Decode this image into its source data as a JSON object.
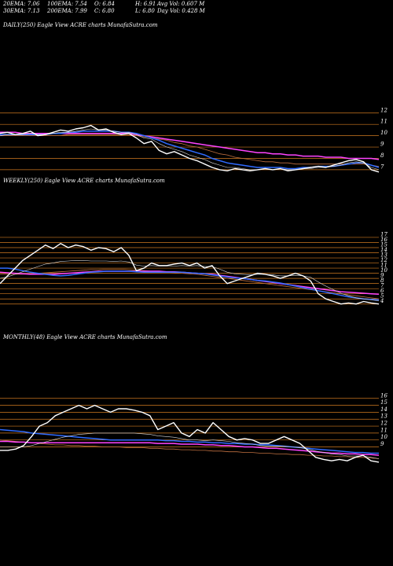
{
  "header": {
    "ema20": "20EMA: 7.06",
    "ema100": "100EMA: 7.54",
    "open": "O: 6.84",
    "high": "H: 6.91",
    "avgvol": "Avg Vol: 0.607 M",
    "ema30": "30EMA: 7.13",
    "ema200": "200EMA: 7.99",
    "close": "C: 6.80",
    "low": "L: 6.80",
    "dayvol": "Day Vol: 0.428  M"
  },
  "colors": {
    "price": "#ffffff",
    "ema_blue": "#2f6bff",
    "ema_magenta": "#ff44ff",
    "ema_brown": "#c07040",
    "ema_white": "#dddddd",
    "grid": "#d07a20"
  },
  "chart_data": [
    {
      "type": "line",
      "title": "DAILY(250) Eagle  View  ACRE charts MunafaSutra.com",
      "ylim": [
        6.3,
        12.4
      ],
      "yticks": [
        "12",
        "11",
        "10",
        "9",
        "8",
        "7"
      ],
      "x": [
        0,
        5,
        10,
        15,
        20,
        25,
        30,
        35,
        40,
        45,
        50,
        55,
        60,
        65,
        70,
        75,
        80,
        85,
        90,
        95,
        100,
        105,
        110,
        115,
        120,
        125,
        130,
        135,
        140,
        145,
        150,
        155,
        160,
        165,
        170,
        175,
        180,
        185,
        190,
        195,
        200,
        205,
        210,
        215,
        220,
        225,
        230,
        235,
        240,
        245,
        250
      ],
      "series": [
        {
          "role": "price",
          "values": [
            10.2,
            10.3,
            10.1,
            10.2,
            10.4,
            10.0,
            10.1,
            10.3,
            10.5,
            10.4,
            10.6,
            10.7,
            10.9,
            10.5,
            10.6,
            10.3,
            10.1,
            10.2,
            9.8,
            9.3,
            9.5,
            8.7,
            8.4,
            8.6,
            8.3,
            8.0,
            7.8,
            7.5,
            7.2,
            7.0,
            6.9,
            7.1,
            7.0,
            6.9,
            7.0,
            7.1,
            7.0,
            7.1,
            6.9,
            7.0,
            7.1,
            7.2,
            7.3,
            7.2,
            7.4,
            7.6,
            7.8,
            7.9,
            7.7,
            7.0,
            6.8
          ]
        },
        {
          "role": "ema_blue",
          "values": [
            10.1,
            10.1,
            10.1,
            10.1,
            10.1,
            10.1,
            10.1,
            10.2,
            10.2,
            10.3,
            10.3,
            10.4,
            10.4,
            10.4,
            10.4,
            10.4,
            10.3,
            10.3,
            10.2,
            10.0,
            9.8,
            9.6,
            9.3,
            9.1,
            8.9,
            8.7,
            8.5,
            8.3,
            8.0,
            7.8,
            7.6,
            7.5,
            7.4,
            7.3,
            7.2,
            7.2,
            7.2,
            7.2,
            7.1,
            7.1,
            7.2,
            7.2,
            7.3,
            7.3,
            7.3,
            7.4,
            7.5,
            7.6,
            7.6,
            7.4,
            7.2
          ]
        },
        {
          "role": "ema_magenta",
          "values": [
            10.3,
            10.3,
            10.3,
            10.2,
            10.2,
            10.2,
            10.2,
            10.2,
            10.2,
            10.2,
            10.2,
            10.2,
            10.2,
            10.2,
            10.2,
            10.2,
            10.2,
            10.2,
            10.1,
            10.0,
            9.9,
            9.8,
            9.7,
            9.6,
            9.5,
            9.4,
            9.3,
            9.2,
            9.1,
            9.0,
            8.9,
            8.8,
            8.7,
            8.6,
            8.5,
            8.5,
            8.4,
            8.4,
            8.3,
            8.3,
            8.2,
            8.2,
            8.2,
            8.1,
            8.1,
            8.1,
            8.0,
            8.0,
            8.0,
            8.0,
            7.9
          ]
        },
        {
          "role": "ema_brown",
          "values": [
            10.0,
            10.0,
            10.0,
            10.0,
            10.0,
            10.0,
            10.0,
            10.0,
            10.0,
            10.1,
            10.1,
            10.1,
            10.1,
            10.1,
            10.1,
            10.1,
            10.1,
            10.1,
            10.0,
            9.9,
            9.8,
            9.7,
            9.6,
            9.4,
            9.3,
            9.1,
            9.0,
            8.8,
            8.6,
            8.4,
            8.3,
            8.1,
            8.0,
            7.9,
            7.8,
            7.7,
            7.7,
            7.6,
            7.6,
            7.5,
            7.5,
            7.5,
            7.5,
            7.5,
            7.5,
            7.5,
            7.5,
            7.5,
            7.5,
            7.4,
            7.3
          ]
        },
        {
          "role": "ema_white",
          "values": [
            10.0,
            10.1,
            10.1,
            10.1,
            10.2,
            10.1,
            10.1,
            10.2,
            10.3,
            10.3,
            10.4,
            10.5,
            10.6,
            10.5,
            10.5,
            10.4,
            10.3,
            10.3,
            10.1,
            9.8,
            9.7,
            9.3,
            9.0,
            8.8,
            8.6,
            8.3,
            8.1,
            7.9,
            7.6,
            7.4,
            7.2,
            7.2,
            7.1,
            7.0,
            7.0,
            7.1,
            7.0,
            7.1,
            7.0,
            7.0,
            7.1,
            7.1,
            7.2,
            7.2,
            7.3,
            7.4,
            7.6,
            7.7,
            7.6,
            7.2,
            7.0
          ]
        }
      ]
    },
    {
      "type": "line",
      "title": "WEEKLY(250) Eagle  View  ACRE charts MunafaSutra.com",
      "ylim": [
        3.5,
        17.3
      ],
      "yticks": [
        "17",
        "16",
        "15",
        "14",
        "13",
        "12",
        "11",
        "10",
        "9",
        "8",
        "7",
        "6",
        "5",
        "4"
      ],
      "x": [
        0,
        5,
        10,
        15,
        20,
        25,
        30,
        35,
        40,
        45,
        50,
        55,
        60,
        65,
        70,
        75,
        80,
        85,
        90,
        95,
        100,
        105,
        110,
        115,
        120,
        125,
        130,
        135,
        140,
        145,
        150,
        155,
        160,
        165,
        170,
        175,
        180,
        185,
        190,
        195,
        200,
        205,
        210,
        215,
        220,
        225,
        230,
        235,
        240,
        245,
        250
      ],
      "series": [
        {
          "role": "price",
          "values": [
            8.0,
            9.5,
            11.0,
            12.5,
            13.5,
            14.5,
            15.5,
            14.8,
            15.8,
            15.0,
            15.5,
            15.2,
            14.5,
            15.0,
            14.8,
            14.2,
            15.0,
            13.5,
            10.5,
            11.0,
            12.0,
            11.5,
            11.5,
            11.8,
            12.0,
            11.5,
            12.0,
            11.0,
            11.5,
            9.5,
            8.0,
            8.5,
            9.0,
            9.5,
            10.0,
            9.8,
            9.5,
            9.0,
            9.5,
            10.0,
            9.5,
            8.5,
            6.0,
            5.0,
            4.5,
            4.0,
            4.2,
            4.0,
            4.5,
            4.2,
            4.0
          ]
        },
        {
          "role": "ema_blue",
          "values": [
            11.0,
            11.0,
            10.8,
            10.5,
            10.2,
            10.0,
            9.8,
            9.6,
            9.5,
            9.6,
            9.8,
            10.0,
            10.2,
            10.3,
            10.4,
            10.4,
            10.4,
            10.4,
            10.3,
            10.2,
            10.2,
            10.2,
            10.2,
            10.2,
            10.2,
            10.1,
            10.0,
            9.9,
            9.7,
            9.5,
            9.3,
            9.1,
            9.0,
            8.8,
            8.6,
            8.5,
            8.3,
            8.1,
            7.8,
            7.5,
            7.2,
            6.9,
            6.6,
            6.3,
            6.0,
            5.7,
            5.4,
            5.2,
            5.0,
            4.9,
            4.8
          ]
        },
        {
          "role": "ema_magenta",
          "values": [
            10.2,
            10.1,
            10.0,
            9.9,
            9.8,
            9.8,
            9.8,
            9.8,
            9.9,
            10.0,
            10.1,
            10.2,
            10.3,
            10.4,
            10.4,
            10.4,
            10.4,
            10.4,
            10.4,
            10.4,
            10.4,
            10.4,
            10.3,
            10.3,
            10.2,
            10.1,
            10.0,
            9.9,
            9.8,
            9.6,
            9.4,
            9.2,
            9.0,
            8.8,
            8.6,
            8.4,
            8.2,
            8.0,
            7.8,
            7.6,
            7.4,
            7.2,
            7.0,
            6.8,
            6.6,
            6.4,
            6.3,
            6.2,
            6.1,
            6.0,
            5.9
          ]
        },
        {
          "role": "ema_brown",
          "values": [
            9.8,
            9.8,
            9.8,
            9.8,
            9.9,
            10.0,
            10.1,
            10.2,
            10.3,
            10.4,
            10.5,
            10.6,
            10.7,
            10.7,
            10.8,
            10.8,
            10.8,
            10.7,
            10.6,
            10.5,
            10.4,
            10.3,
            10.2,
            10.1,
            10.0,
            9.9,
            9.8,
            9.6,
            9.4,
            9.2,
            9.0,
            8.8,
            8.6,
            8.4,
            8.2,
            8.0,
            7.8,
            7.6,
            7.4,
            7.2,
            7.0,
            6.8,
            6.6,
            6.4,
            6.2,
            6.0,
            5.8,
            5.6,
            5.4,
            5.2,
            5.0
          ]
        },
        {
          "role": "ema_white",
          "values": [
            9.0,
            9.3,
            9.8,
            10.3,
            10.8,
            11.3,
            11.8,
            12.0,
            12.3,
            12.4,
            12.5,
            12.5,
            12.4,
            12.4,
            12.4,
            12.3,
            12.4,
            12.2,
            11.6,
            11.4,
            11.5,
            11.4,
            11.4,
            11.4,
            11.5,
            11.4,
            11.5,
            11.3,
            11.3,
            10.8,
            10.2,
            9.9,
            9.8,
            9.7,
            9.8,
            9.8,
            9.7,
            9.5,
            9.5,
            9.6,
            9.5,
            9.2,
            8.3,
            7.5,
            6.8,
            6.1,
            5.6,
            5.2,
            5.0,
            4.8,
            4.6
          ]
        }
      ]
    },
    {
      "type": "line",
      "title": "MONTHLY(48) Eagle  View  ACRE charts MunafaSutra.com",
      "ylim": [
        6.0,
        16.2
      ],
      "yticks": [
        "16",
        "15",
        "14",
        "13",
        "12",
        "11",
        "10",
        "9"
      ],
      "x": [
        0,
        1,
        2,
        3,
        4,
        5,
        6,
        7,
        8,
        9,
        10,
        11,
        12,
        13,
        14,
        15,
        16,
        17,
        18,
        19,
        20,
        21,
        22,
        23,
        24,
        25,
        26,
        27,
        28,
        29,
        30,
        31,
        32,
        33,
        34,
        35,
        36,
        37,
        38,
        39,
        40,
        41,
        42,
        43,
        44,
        45,
        46,
        47,
        48
      ],
      "series": [
        {
          "role": "price",
          "values": [
            8.5,
            8.5,
            8.7,
            9.2,
            10.5,
            12.0,
            12.5,
            13.5,
            14.0,
            14.5,
            15.0,
            14.5,
            15.0,
            14.5,
            14.0,
            14.5,
            14.5,
            14.3,
            14.0,
            13.5,
            11.5,
            12.0,
            12.5,
            11.0,
            10.5,
            11.5,
            11.0,
            12.5,
            11.5,
            10.5,
            10.0,
            10.2,
            10.0,
            9.5,
            9.5,
            10.0,
            10.5,
            10.0,
            9.5,
            8.5,
            7.5,
            7.2,
            7.0,
            7.2,
            7.0,
            7.5,
            7.8,
            7.0,
            6.8
          ]
        },
        {
          "role": "ema_blue",
          "values": [
            11.5,
            11.4,
            11.3,
            11.2,
            11.0,
            10.9,
            10.8,
            10.7,
            10.6,
            10.5,
            10.4,
            10.3,
            10.2,
            10.1,
            10.0,
            10.0,
            10.0,
            10.0,
            10.0,
            10.0,
            10.0,
            9.9,
            9.9,
            9.8,
            9.8,
            9.7,
            9.7,
            9.6,
            9.6,
            9.5,
            9.5,
            9.4,
            9.4,
            9.3,
            9.3,
            9.2,
            9.1,
            9.0,
            8.9,
            8.8,
            8.7,
            8.6,
            8.5,
            8.4,
            8.3,
            8.2,
            8.2,
            8.1,
            8.1
          ]
        },
        {
          "role": "ema_magenta",
          "values": [
            9.8,
            9.8,
            9.7,
            9.7,
            9.6,
            9.6,
            9.6,
            9.6,
            9.6,
            9.6,
            9.6,
            9.6,
            9.6,
            9.6,
            9.6,
            9.6,
            9.6,
            9.6,
            9.6,
            9.6,
            9.5,
            9.5,
            9.5,
            9.4,
            9.4,
            9.4,
            9.3,
            9.3,
            9.2,
            9.2,
            9.1,
            9.0,
            9.0,
            8.9,
            8.8,
            8.8,
            8.7,
            8.6,
            8.5,
            8.4,
            8.3,
            8.2,
            8.1,
            8.1,
            8.0,
            8.0,
            7.9,
            7.9,
            7.8
          ]
        },
        {
          "role": "ema_brown",
          "values": [
            10.0,
            9.9,
            9.8,
            9.7,
            9.6,
            9.5,
            9.4,
            9.3,
            9.3,
            9.2,
            9.2,
            9.1,
            9.1,
            9.0,
            9.0,
            9.0,
            8.9,
            8.9,
            8.9,
            8.8,
            8.8,
            8.7,
            8.7,
            8.6,
            8.6,
            8.5,
            8.5,
            8.4,
            8.4,
            8.3,
            8.3,
            8.2,
            8.2,
            8.1,
            8.1,
            8.0,
            8.0,
            7.9,
            7.9,
            7.8,
            7.8,
            7.7,
            7.7,
            7.6,
            7.6,
            7.5,
            7.5,
            7.4,
            7.3
          ]
        },
        {
          "role": "ema_white",
          "values": [
            9.0,
            9.0,
            9.0,
            9.0,
            9.2,
            9.5,
            9.8,
            10.1,
            10.4,
            10.6,
            10.8,
            10.9,
            11.0,
            11.0,
            11.0,
            11.0,
            11.0,
            11.0,
            10.9,
            10.8,
            10.6,
            10.5,
            10.4,
            10.2,
            10.0,
            10.0,
            9.9,
            10.0,
            9.9,
            9.8,
            9.6,
            9.5,
            9.4,
            9.2,
            9.1,
            9.1,
            9.1,
            9.0,
            8.9,
            8.7,
            8.4,
            8.2,
            8.0,
            7.9,
            7.7,
            7.7,
            7.7,
            7.5,
            7.3
          ]
        }
      ]
    }
  ]
}
